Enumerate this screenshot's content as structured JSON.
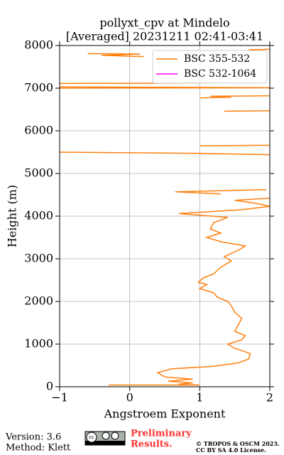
{
  "chart_data": {
    "type": "line",
    "title": "pollyxt_cpv at Mindelo",
    "subtitle": "[Averaged] 20231211 02:41-03:41",
    "x_label": "Angstroem Exponent",
    "y_label": "Height (m)",
    "xlim": [
      -1,
      2
    ],
    "xticks": [
      {
        "value": -1,
        "label": "−1"
      },
      0,
      1,
      2
    ],
    "ylim": [
      0,
      8000
    ],
    "yticks": [
      0,
      1000,
      2000,
      3000,
      4000,
      5000,
      6000,
      7000,
      8000
    ],
    "grid": true,
    "legend": "upper right",
    "series": [
      {
        "name": "BSC 355-532",
        "color": "#ff7f0e",
        "x": [
          -0.3,
          1.0,
          0.7,
          0.9,
          0.55,
          0.9,
          0.5,
          0.4,
          0.6,
          1.2,
          1.55,
          1.7,
          1.72,
          1.5,
          1.4,
          1.6,
          1.65,
          1.5,
          1.55,
          1.6,
          1.5,
          1.45,
          1.4,
          1.25,
          1.2,
          1.0,
          1.1,
          0.98,
          1.05,
          1.2,
          1.3,
          1.45,
          1.35,
          1.55,
          1.65,
          1.3,
          1.1,
          1.3,
          1.15,
          1.2,
          1.4,
          0.7,
          1.6,
          2.0,
          1.8,
          1.5,
          2.0,
          null,
          1.3,
          0.65,
          1.95,
          null,
          2.0,
          1.0,
          -1.0,
          null,
          1.0,
          2.0,
          null,
          1.35,
          2.0,
          null,
          1.0,
          1.45,
          1.15,
          2.0,
          null,
          -1.0,
          2.0,
          -1.0,
          null,
          -1.0,
          1.1,
          null,
          0.2,
          -0.4,
          0.15,
          -0.6,
          null,
          1.7,
          2.0
        ],
        "values": [
          40,
          40,
          60,
          90,
          130,
          180,
          230,
          330,
          420,
          480,
          560,
          650,
          780,
          900,
          1000,
          1100,
          1200,
          1300,
          1450,
          1600,
          1750,
          1900,
          2000,
          2100,
          2200,
          2300,
          2400,
          2450,
          2550,
          2650,
          2800,
          2950,
          3050,
          3200,
          3300,
          3400,
          3500,
          3600,
          3700,
          3850,
          3970,
          4060,
          4150,
          4230,
          4300,
          4370,
          4420,
          null,
          4520,
          4570,
          4620,
          null,
          5440,
          5470,
          5500,
          null,
          5650,
          5660,
          null,
          6460,
          6470,
          null,
          6770,
          6790,
          6810,
          6820,
          null,
          7000,
          7010,
          7030,
          null,
          7110,
          7120,
          null,
          7740,
          7770,
          7800,
          7810,
          null,
          7900,
          7910
        ]
      },
      {
        "name": "BSC 532-1064",
        "color": "#ff00ff",
        "x": [],
        "values": []
      }
    ]
  },
  "footer": {
    "version": "Version: 3.6",
    "method": "Method: Klett",
    "preliminary": [
      "Preliminary",
      "Results."
    ],
    "copyright": [
      "© TROPOS & OSCM 2023.",
      "CC BY SA 4.0 License."
    ]
  }
}
